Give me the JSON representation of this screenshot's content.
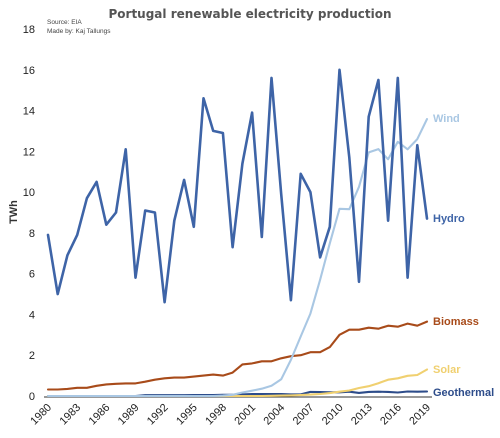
{
  "chart_data": {
    "type": "line",
    "title": "Portugal renewable electricity production",
    "source_note": "Source: EIA",
    "author_note": "Made by: Kaj Tallungs",
    "ylabel": "TWh",
    "xlabel": "",
    "xlim": [
      1980,
      2019
    ],
    "ylim": [
      0,
      18
    ],
    "grid": false,
    "legend": "labels at line ends (right)",
    "x": [
      1980,
      1981,
      1982,
      1983,
      1984,
      1985,
      1986,
      1987,
      1988,
      1989,
      1990,
      1991,
      1992,
      1993,
      1994,
      1995,
      1996,
      1997,
      1998,
      1999,
      2000,
      2001,
      2002,
      2003,
      2004,
      2005,
      2006,
      2007,
      2008,
      2009,
      2010,
      2011,
      2012,
      2013,
      2014,
      2015,
      2016,
      2017,
      2018,
      2019
    ],
    "x_tick_labels": [
      "1980",
      "1983",
      "1986",
      "1989",
      "1992",
      "1995",
      "1998",
      "2001",
      "2004",
      "2007",
      "2010",
      "2013",
      "2016",
      "2019"
    ],
    "y_ticks": [
      0,
      2,
      4,
      6,
      8,
      10,
      12,
      14,
      16,
      18
    ],
    "series": [
      {
        "name": "Hydro",
        "color": "#3e64a7",
        "values": [
          7.9,
          5.0,
          6.9,
          7.9,
          9.7,
          10.5,
          8.4,
          9.0,
          12.1,
          5.8,
          9.1,
          9.0,
          4.6,
          8.6,
          10.6,
          8.3,
          14.6,
          13.0,
          12.9,
          7.3,
          11.4,
          13.9,
          7.8,
          15.6,
          9.9,
          4.7,
          10.9,
          10.0,
          6.8,
          8.3,
          16.0,
          11.7,
          5.6,
          13.7,
          15.5,
          8.6,
          15.6,
          5.8,
          12.3,
          8.7
        ]
      },
      {
        "name": "Wind",
        "color": "#a9c7e3",
        "values": [
          0,
          0,
          0,
          0,
          0,
          0,
          0,
          0,
          0,
          0,
          0,
          0,
          0,
          0,
          0,
          0,
          0,
          0,
          0.02,
          0.06,
          0.17,
          0.26,
          0.36,
          0.5,
          0.82,
          1.77,
          2.92,
          4.04,
          5.7,
          7.49,
          9.18,
          9.16,
          10.26,
          11.95,
          12.11,
          11.61,
          12.47,
          12.1,
          12.6,
          13.58
        ]
      },
      {
        "name": "Biomass",
        "color": "#a84b1a",
        "values": [
          0.32,
          0.32,
          0.35,
          0.4,
          0.4,
          0.5,
          0.57,
          0.6,
          0.62,
          0.62,
          0.7,
          0.8,
          0.87,
          0.9,
          0.9,
          0.95,
          1.0,
          1.05,
          1.0,
          1.15,
          1.55,
          1.6,
          1.7,
          1.7,
          1.85,
          1.95,
          2.0,
          2.15,
          2.15,
          2.4,
          3.0,
          3.25,
          3.25,
          3.35,
          3.3,
          3.45,
          3.4,
          3.55,
          3.45,
          3.65
        ]
      },
      {
        "name": "Solar",
        "color": "#f0d070",
        "values": [
          0,
          0,
          0,
          0,
          0,
          0,
          0,
          0,
          0,
          0,
          0,
          0,
          0,
          0,
          0,
          0,
          0,
          0,
          0,
          0,
          0,
          0,
          0,
          0.01,
          0.02,
          0.03,
          0.05,
          0.07,
          0.1,
          0.14,
          0.21,
          0.27,
          0.39,
          0.48,
          0.63,
          0.8,
          0.87,
          0.99,
          1.03,
          1.3
        ]
      },
      {
        "name": "Geothermal",
        "color": "#2d4c8a",
        "values": [
          0,
          0,
          0,
          0,
          0,
          0,
          0,
          0,
          0,
          0,
          0.04,
          0.04,
          0.04,
          0.04,
          0.04,
          0.05,
          0.05,
          0.05,
          0.06,
          0.06,
          0.08,
          0.1,
          0.1,
          0.1,
          0.1,
          0.08,
          0.08,
          0.2,
          0.19,
          0.18,
          0.18,
          0.21,
          0.15,
          0.2,
          0.21,
          0.2,
          0.17,
          0.22,
          0.21,
          0.22
        ]
      }
    ]
  }
}
